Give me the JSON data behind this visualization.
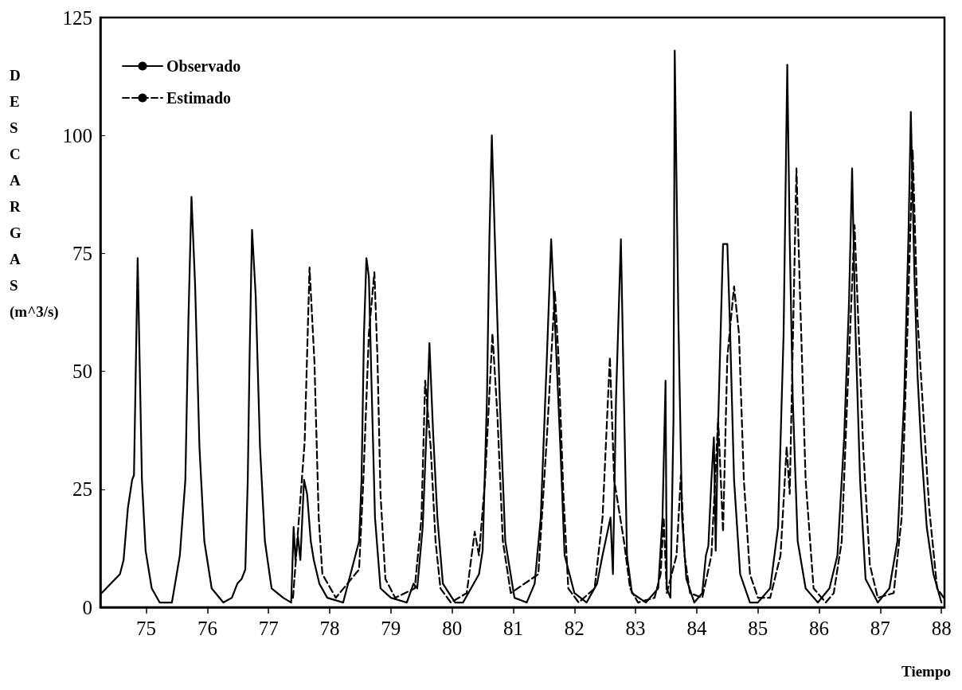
{
  "chart_data": {
    "type": "line",
    "xlabel": "Tiempo",
    "ylabel": "DESCARGAS (m^3/s)",
    "xlim": [
      74.25,
      88.05
    ],
    "xticks": [
      75,
      76,
      77,
      78,
      79,
      80,
      81,
      82,
      83,
      84,
      85,
      86,
      87,
      88
    ],
    "ylim": [
      0,
      125
    ],
    "yticks": [
      0,
      25,
      50,
      75,
      100,
      125
    ],
    "grid": false,
    "legend": "top left",
    "marker": "none",
    "series": [
      {
        "name": "Observado",
        "color": "#000000",
        "line_style": "solid",
        "x": [
          74.27,
          74.57,
          74.63,
          74.7,
          74.77,
          74.8,
          74.86,
          74.93,
          74.99,
          75.09,
          75.22,
          75.42,
          75.55,
          75.64,
          75.69,
          75.74,
          75.8,
          75.87,
          75.95,
          76.07,
          76.26,
          76.4,
          76.49,
          76.56,
          76.62,
          76.66,
          76.69,
          76.73,
          76.79,
          76.86,
          76.94,
          77.05,
          77.24,
          77.37,
          77.41,
          77.44,
          77.48,
          77.52,
          77.58,
          77.63,
          77.69,
          77.74,
          77.83,
          77.96,
          78.22,
          78.42,
          78.48,
          78.52,
          78.56,
          78.6,
          78.64,
          78.69,
          78.74,
          78.83,
          79.0,
          79.26,
          79.37,
          79.43,
          79.52,
          79.59,
          79.63,
          79.69,
          79.76,
          79.85,
          80.05,
          80.18,
          80.44,
          80.5,
          80.57,
          80.61,
          80.65,
          80.7,
          80.78,
          80.87,
          81.02,
          81.22,
          81.35,
          81.45,
          81.55,
          81.62,
          81.69,
          81.77,
          81.84,
          82.0,
          82.2,
          82.37,
          82.46,
          82.59,
          82.63,
          82.68,
          82.72,
          82.76,
          82.81,
          82.86,
          82.94,
          83.17,
          83.37,
          83.44,
          83.49,
          83.51,
          83.57,
          83.62,
          83.64,
          83.7,
          83.76,
          83.83,
          83.96,
          84.09,
          84.15,
          84.19,
          84.24,
          84.28,
          84.31,
          84.35,
          84.39,
          84.43,
          84.5,
          84.54,
          84.61,
          84.71,
          84.87,
          85.0,
          85.2,
          85.33,
          85.42,
          85.48,
          85.52,
          85.57,
          85.65,
          85.78,
          85.98,
          86.17,
          86.3,
          86.41,
          86.49,
          86.54,
          86.59,
          86.67,
          86.76,
          86.96,
          87.15,
          87.28,
          87.39,
          87.46,
          87.5,
          87.56,
          87.61,
          87.67,
          87.76,
          87.87,
          88.0
        ],
        "values": [
          3,
          7,
          10,
          21,
          27,
          28,
          74,
          27,
          12,
          4,
          1,
          1,
          11,
          27,
          61,
          87,
          68,
          34,
          14,
          4,
          1,
          2,
          5,
          6,
          8,
          27,
          53,
          80,
          66,
          34,
          14,
          4,
          2,
          1,
          17,
          10,
          15,
          10,
          27,
          24,
          14,
          10,
          5,
          2,
          1,
          11,
          14,
          27,
          58,
          74,
          70,
          44,
          19,
          4,
          2,
          1,
          5,
          4,
          17,
          40,
          56,
          37,
          19,
          5,
          1,
          1,
          7,
          12,
          44,
          78,
          100,
          78,
          44,
          14,
          2,
          1,
          5,
          19,
          53,
          78,
          58,
          34,
          11,
          3,
          1,
          5,
          11,
          19,
          7,
          44,
          61,
          78,
          44,
          11,
          3,
          1,
          4,
          19,
          48,
          4,
          2,
          40,
          118,
          61,
          19,
          6,
          1,
          3,
          11,
          13,
          27,
          36,
          12,
          39,
          58,
          77,
          77,
          61,
          27,
          7,
          1,
          1,
          4,
          17,
          58,
          115,
          78,
          44,
          14,
          4,
          1,
          4,
          11,
          36,
          65,
          93,
          61,
          27,
          6,
          1,
          4,
          14,
          44,
          78,
          105,
          70,
          49,
          34,
          17,
          7,
          1
        ]
      },
      {
        "name": "Estimado",
        "color": "#000000",
        "line_style": "dashed",
        "x": [
          77.4,
          77.59,
          77.67,
          77.75,
          77.82,
          77.88,
          78.1,
          78.48,
          78.55,
          78.64,
          78.73,
          78.78,
          78.83,
          78.91,
          79.07,
          79.39,
          79.5,
          79.56,
          79.65,
          79.73,
          79.81,
          79.98,
          80.24,
          80.37,
          80.44,
          80.54,
          80.66,
          80.74,
          80.83,
          80.96,
          81.41,
          81.55,
          81.68,
          81.74,
          81.82,
          81.9,
          82.07,
          82.33,
          82.46,
          82.58,
          82.65,
          82.81,
          82.91,
          83.04,
          83.31,
          83.41,
          83.46,
          83.51,
          83.67,
          83.74,
          83.8,
          83.89,
          84.09,
          84.24,
          84.35,
          84.43,
          84.5,
          84.61,
          84.69,
          84.77,
          84.87,
          85.0,
          85.2,
          85.37,
          85.47,
          85.52,
          85.63,
          85.68,
          85.78,
          85.91,
          86.11,
          86.24,
          86.37,
          86.46,
          86.58,
          86.64,
          86.72,
          86.83,
          86.96,
          87.22,
          87.35,
          87.45,
          87.53,
          87.61,
          87.69,
          87.8,
          87.93,
          88.04
        ],
        "values": [
          2,
          35,
          72,
          52,
          19,
          7,
          2,
          8,
          27,
          58,
          71,
          53,
          24,
          6,
          2,
          4,
          19,
          48,
          34,
          14,
          4,
          1,
          3,
          16,
          11,
          27,
          58,
          41,
          14,
          3,
          7,
          36,
          67,
          53,
          24,
          4,
          1,
          4,
          19,
          53,
          27,
          14,
          4,
          1,
          2,
          7,
          19,
          3,
          11,
          28,
          11,
          3,
          2,
          11,
          40,
          16,
          53,
          68,
          58,
          27,
          7,
          2,
          2,
          11,
          34,
          24,
          93,
          70,
          27,
          4,
          1,
          3,
          14,
          44,
          81,
          61,
          34,
          9,
          2,
          3,
          19,
          61,
          97,
          61,
          44,
          21,
          4,
          2
        ]
      }
    ]
  }
}
